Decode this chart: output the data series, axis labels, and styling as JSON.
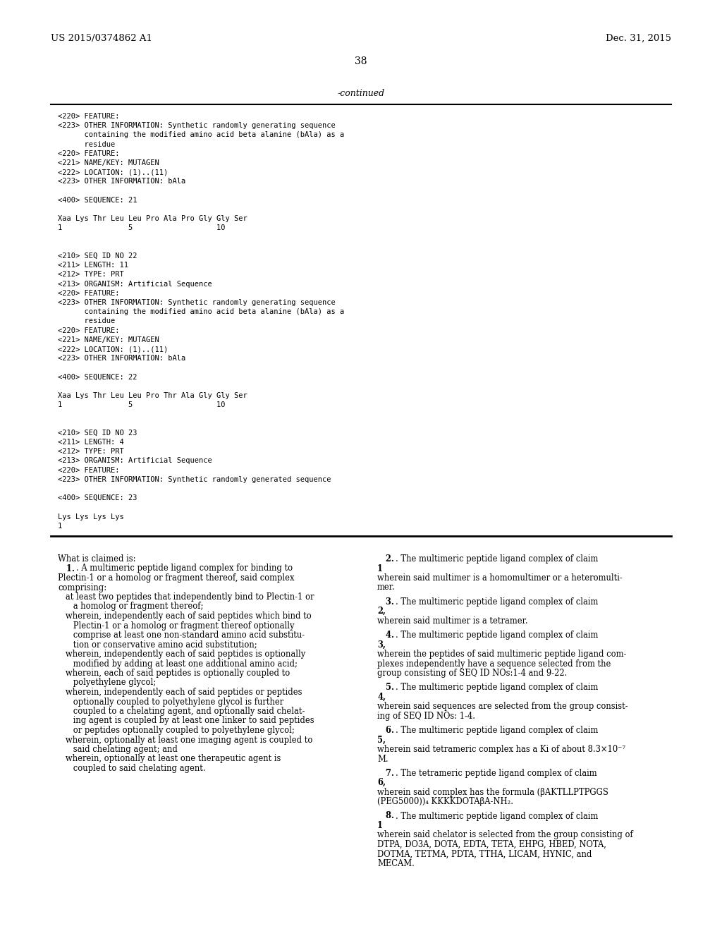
{
  "background_color": "#ffffff",
  "header_left": "US 2015/0374862 A1",
  "header_right": "Dec. 31, 2015",
  "page_number": "38",
  "continued_label": "-continued",
  "mono_lines": [
    "<220> FEATURE:",
    "<223> OTHER INFORMATION: Synthetic randomly generating sequence",
    "      containing the modified amino acid beta alanine (bAla) as a",
    "      residue",
    "<220> FEATURE:",
    "<221> NAME/KEY: MUTAGEN",
    "<222> LOCATION: (1)..(11)",
    "<223> OTHER INFORMATION: bAla",
    "",
    "<400> SEQUENCE: 21",
    "",
    "Xaa Lys Thr Leu Leu Pro Ala Pro Gly Gly Ser",
    "1               5                   10",
    "",
    "",
    "<210> SEQ ID NO 22",
    "<211> LENGTH: 11",
    "<212> TYPE: PRT",
    "<213> ORGANISM: Artificial Sequence",
    "<220> FEATURE:",
    "<223> OTHER INFORMATION: Synthetic randomly generating sequence",
    "      containing the modified amino acid beta alanine (bAla) as a",
    "      residue",
    "<220> FEATURE:",
    "<221> NAME/KEY: MUTAGEN",
    "<222> LOCATION: (1)..(11)",
    "<223> OTHER INFORMATION: bAla",
    "",
    "<400> SEQUENCE: 22",
    "",
    "Xaa Lys Thr Leu Leu Pro Thr Ala Gly Gly Ser",
    "1               5                   10",
    "",
    "",
    "<210> SEQ ID NO 23",
    "<211> LENGTH: 4",
    "<212> TYPE: PRT",
    "<213> ORGANISM: Artificial Sequence",
    "<220> FEATURE:",
    "<223> OTHER INFORMATION: Synthetic randomly generated sequence",
    "",
    "<400> SEQUENCE: 23",
    "",
    "Lys Lys Lys Lys",
    "1"
  ],
  "claims_left": [
    [
      "normal",
      "What is claimed is:"
    ],
    [
      "bold_num",
      "1",
      ". A multimeric peptide ligand complex for binding to"
    ],
    [
      "normal",
      "Plectin-1 or a homolog or fragment thereof, said complex"
    ],
    [
      "normal",
      "comprising:"
    ],
    [
      "normal",
      "   at least two peptides that independently bind to Plectin-1 or"
    ],
    [
      "normal",
      "      a homolog or fragment thereof;"
    ],
    [
      "normal",
      "   wherein, independently each of said peptides which bind to"
    ],
    [
      "normal",
      "      Plectin-1 or a homolog or fragment thereof optionally"
    ],
    [
      "normal",
      "      comprise at least one non-standard amino acid substitu-"
    ],
    [
      "normal",
      "      tion or conservative amino acid substitution;"
    ],
    [
      "normal",
      "   wherein, independently each of said peptides is optionally"
    ],
    [
      "normal",
      "      modified by adding at least one additional amino acid;"
    ],
    [
      "normal",
      "   wherein, each of said peptides is optionally coupled to"
    ],
    [
      "normal",
      "      polyethylene glycol;"
    ],
    [
      "normal",
      "   wherein, independently each of said peptides or peptides"
    ],
    [
      "normal",
      "      optionally coupled to polyethylene glycol is further"
    ],
    [
      "normal",
      "      coupled to a chelating agent, and optionally said chelat-"
    ],
    [
      "normal",
      "      ing agent is coupled by at least one linker to said peptides"
    ],
    [
      "normal",
      "      or peptides optionally coupled to polyethylene glycol;"
    ],
    [
      "normal",
      "   wherein, optionally at least one imaging agent is coupled to"
    ],
    [
      "normal",
      "      said chelating agent; and"
    ],
    [
      "normal",
      "   wherein, optionally at least one therapeutic agent is"
    ],
    [
      "normal",
      "      coupled to said chelating agent."
    ]
  ],
  "claims_right": [
    [
      "bold_num",
      "2",
      ". The multimeric peptide ligand complex of claim "
    ],
    [
      "bold_end",
      "1"
    ],
    [
      "normal",
      "wherein said multimer is a homomultimer or a heteromulti-"
    ],
    [
      "normal",
      "mer."
    ],
    [
      "blank",
      ""
    ],
    [
      "bold_num",
      "3",
      ". The multimeric peptide ligand complex of claim "
    ],
    [
      "bold_end",
      "2,"
    ],
    [
      "normal",
      "wherein said multimer is a tetramer."
    ],
    [
      "blank",
      ""
    ],
    [
      "bold_num",
      "4",
      ". The multimeric peptide ligand complex of claim "
    ],
    [
      "bold_end",
      "3,"
    ],
    [
      "normal",
      "wherein the peptides of said multimeric peptide ligand com-"
    ],
    [
      "normal",
      "plexes independently have a sequence selected from the"
    ],
    [
      "normal",
      "group consisting of SEQ ID NOs:1-4 and 9-22."
    ],
    [
      "blank",
      ""
    ],
    [
      "bold_num",
      "5",
      ". The multimeric peptide ligand complex of claim "
    ],
    [
      "bold_end",
      "4,"
    ],
    [
      "normal",
      "wherein said sequences are selected from the group consist-"
    ],
    [
      "normal",
      "ing of SEQ ID NOs: 1-4."
    ],
    [
      "blank",
      ""
    ],
    [
      "bold_num",
      "6",
      ". The multimeric peptide ligand complex of claim "
    ],
    [
      "bold_end",
      "5,"
    ],
    [
      "normal",
      "wherein said tetrameric complex has a Ki of about 8.3×10⁻⁷"
    ],
    [
      "normal",
      "M."
    ],
    [
      "blank",
      ""
    ],
    [
      "bold_num",
      "7",
      ". The tetrameric peptide ligand complex of claim "
    ],
    [
      "bold_end",
      "6,"
    ],
    [
      "normal",
      "wherein said complex has the formula (βAKTLLPTPGGS"
    ],
    [
      "normal",
      "(PEG5000))₄ KKKKDOTAβA-NH₂."
    ],
    [
      "blank",
      ""
    ],
    [
      "bold_num",
      "8",
      ". The multimeric peptide ligand complex of claim "
    ],
    [
      "bold_end",
      "1"
    ],
    [
      "normal",
      "wherein said chelator is selected from the group consisting of"
    ],
    [
      "normal",
      "DTPA, DO3A, DOTA, EDTA, TETA, EHPG, HBED, NOTA,"
    ],
    [
      "normal",
      "DOTMA, TETMA, PDTA, TTHA, LICAM, HYNIC, and"
    ],
    [
      "normal",
      "MECAM."
    ]
  ]
}
